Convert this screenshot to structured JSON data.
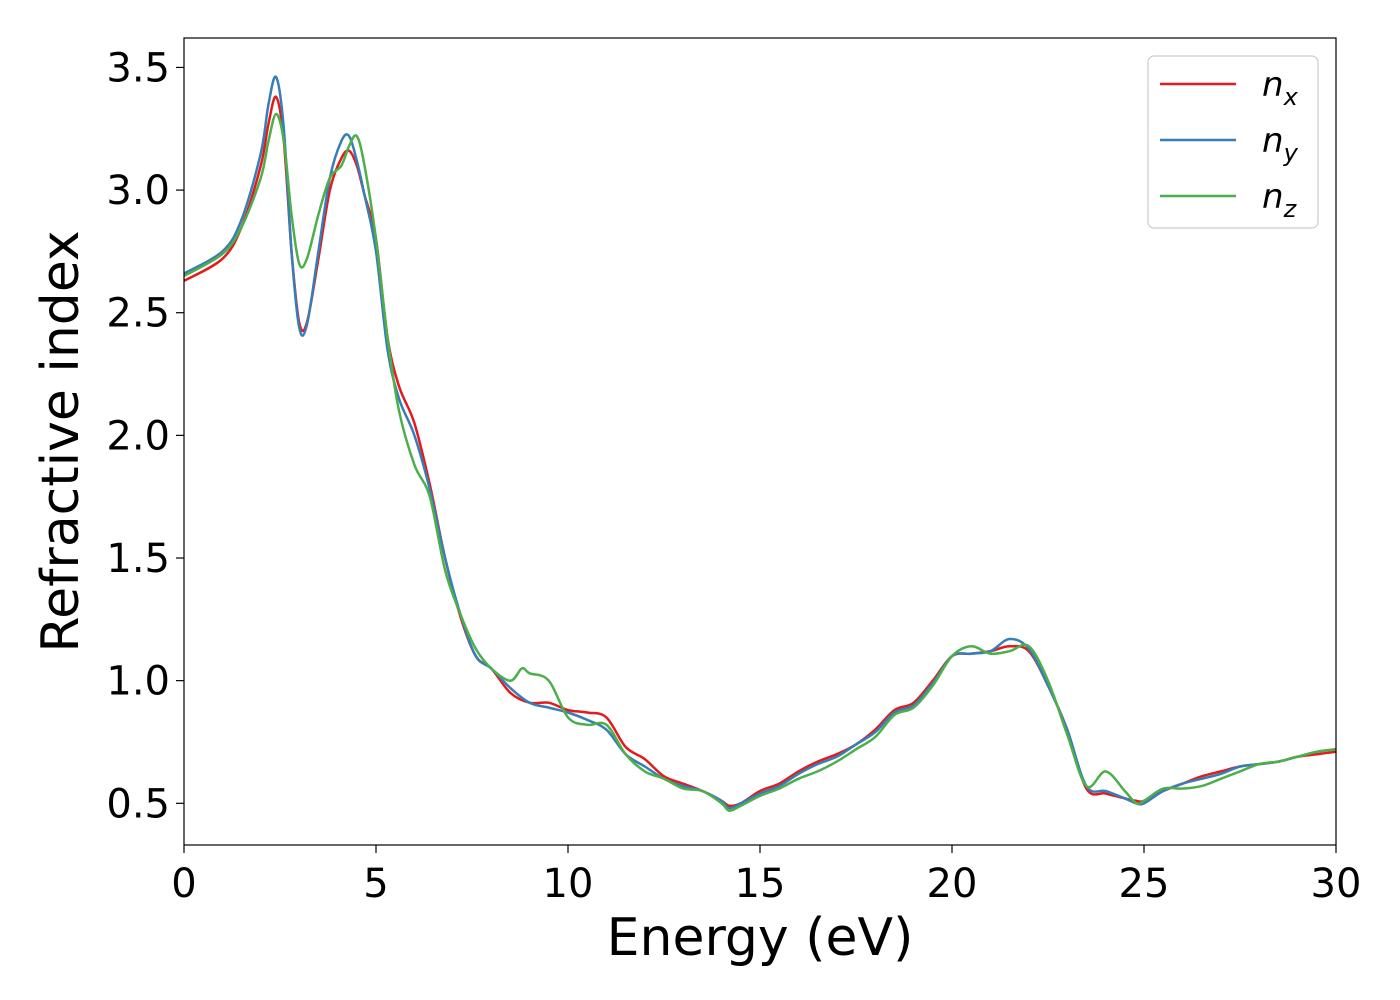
{
  "chart_data": {
    "type": "line",
    "title": "",
    "xlabel": "Energy (eV)",
    "ylabel": "Refractive index",
    "xlim": [
      0,
      30
    ],
    "ylim": [
      0.33,
      3.62
    ],
    "xticks": [
      0,
      5,
      10,
      15,
      20,
      25,
      30
    ],
    "xtick_labels": [
      "0",
      "5",
      "10",
      "15",
      "20",
      "25",
      "30"
    ],
    "yticks": [
      0.5,
      1.0,
      1.5,
      2.0,
      2.5,
      3.0,
      3.5
    ],
    "ytick_labels": [
      "0.5",
      "1.0",
      "1.5",
      "2.0",
      "2.5",
      "3.0",
      "3.5"
    ],
    "grid": false,
    "legend_position": "top-right",
    "series": [
      {
        "name": "n_x",
        "label_base": "n",
        "label_sub": "x",
        "color": "#e41a1c",
        "x": [
          0,
          1,
          1.5,
          2,
          2.2,
          2.4,
          2.6,
          2.8,
          3.0,
          3.2,
          3.5,
          3.8,
          4.1,
          4.3,
          4.5,
          4.7,
          5.0,
          5.3,
          5.6,
          6.0,
          6.4,
          6.8,
          7.2,
          7.6,
          8.0,
          8.5,
          9.0,
          9.5,
          10.0,
          10.5,
          11.0,
          11.5,
          12.0,
          12.5,
          13.0,
          13.5,
          14.0,
          14.2,
          14.5,
          15.0,
          15.5,
          16.0,
          16.5,
          17.0,
          17.5,
          18.0,
          18.5,
          19.0,
          19.5,
          20.0,
          20.5,
          21.0,
          21.5,
          22.0,
          22.5,
          23.0,
          23.5,
          24.0,
          24.5,
          24.8,
          25.0,
          25.5,
          26.0,
          26.5,
          27.0,
          27.5,
          28.0,
          28.5,
          29.0,
          29.5,
          30.0
        ],
        "y": [
          2.63,
          2.72,
          2.85,
          3.1,
          3.27,
          3.38,
          3.2,
          2.75,
          2.46,
          2.46,
          2.72,
          3.0,
          3.13,
          3.16,
          3.1,
          2.98,
          2.8,
          2.4,
          2.2,
          2.05,
          1.8,
          1.5,
          1.26,
          1.1,
          1.05,
          0.95,
          0.91,
          0.91,
          0.88,
          0.87,
          0.85,
          0.73,
          0.68,
          0.61,
          0.58,
          0.55,
          0.51,
          0.49,
          0.5,
          0.55,
          0.58,
          0.63,
          0.67,
          0.7,
          0.74,
          0.8,
          0.88,
          0.91,
          1.0,
          1.1,
          1.11,
          1.12,
          1.14,
          1.12,
          0.98,
          0.8,
          0.56,
          0.54,
          0.52,
          0.51,
          0.51,
          0.55,
          0.58,
          0.61,
          0.63,
          0.65,
          0.66,
          0.67,
          0.69,
          0.7,
          0.71
        ]
      },
      {
        "name": "n_y",
        "label_base": "n",
        "label_sub": "y",
        "color": "#377eb8",
        "x": [
          0,
          1,
          1.5,
          2,
          2.2,
          2.4,
          2.6,
          2.8,
          3.0,
          3.2,
          3.5,
          3.8,
          4.1,
          4.3,
          4.5,
          4.7,
          5.0,
          5.3,
          5.6,
          6.0,
          6.4,
          6.8,
          7.2,
          7.6,
          8.0,
          8.5,
          9.0,
          9.5,
          10.0,
          10.5,
          11.0,
          11.5,
          12.0,
          12.5,
          13.0,
          13.5,
          14.0,
          14.2,
          14.5,
          15.0,
          15.5,
          16.0,
          16.5,
          17.0,
          17.5,
          18.0,
          18.5,
          19.0,
          19.5,
          20.0,
          20.5,
          21.0,
          21.5,
          22.0,
          22.5,
          23.0,
          23.5,
          24.0,
          24.5,
          24.8,
          25.0,
          25.5,
          26.0,
          26.5,
          27.0,
          27.5,
          28.0,
          28.5,
          29.0,
          29.5,
          30.0
        ],
        "y": [
          2.66,
          2.75,
          2.88,
          3.15,
          3.35,
          3.46,
          3.25,
          2.75,
          2.44,
          2.45,
          2.75,
          3.05,
          3.2,
          3.22,
          3.12,
          2.98,
          2.75,
          2.35,
          2.15,
          2.0,
          1.78,
          1.5,
          1.27,
          1.1,
          1.05,
          0.97,
          0.91,
          0.89,
          0.87,
          0.84,
          0.8,
          0.7,
          0.65,
          0.6,
          0.57,
          0.55,
          0.51,
          0.48,
          0.5,
          0.54,
          0.57,
          0.62,
          0.66,
          0.69,
          0.74,
          0.79,
          0.87,
          0.9,
          0.99,
          1.1,
          1.11,
          1.12,
          1.17,
          1.13,
          0.98,
          0.8,
          0.57,
          0.55,
          0.52,
          0.5,
          0.5,
          0.55,
          0.58,
          0.6,
          0.62,
          0.65,
          0.66,
          0.67,
          0.69,
          0.71,
          0.72
        ]
      },
      {
        "name": "n_z",
        "label_base": "n",
        "label_sub": "z",
        "color": "#4daf4a",
        "x": [
          0,
          1,
          1.5,
          2,
          2.2,
          2.4,
          2.6,
          2.8,
          3.0,
          3.2,
          3.5,
          3.8,
          4.1,
          4.3,
          4.5,
          4.7,
          5.0,
          5.3,
          5.6,
          6.0,
          6.4,
          6.8,
          7.2,
          7.6,
          8.0,
          8.5,
          8.8,
          9.0,
          9.5,
          10.0,
          10.5,
          11.0,
          11.5,
          12.0,
          12.5,
          13.0,
          13.5,
          14.0,
          14.2,
          14.5,
          15.0,
          15.5,
          16.0,
          16.5,
          17.0,
          17.5,
          18.0,
          18.5,
          19.0,
          19.5,
          20.0,
          20.5,
          21.0,
          21.5,
          22.0,
          22.5,
          23.0,
          23.5,
          24.0,
          24.5,
          24.8,
          25.0,
          25.5,
          26.0,
          26.5,
          27.0,
          27.5,
          28.0,
          28.5,
          29.0,
          29.5,
          30.0
        ],
        "y": [
          2.65,
          2.74,
          2.85,
          3.05,
          3.2,
          3.31,
          3.2,
          2.9,
          2.7,
          2.72,
          2.9,
          3.05,
          3.1,
          3.18,
          3.22,
          3.1,
          2.8,
          2.4,
          2.1,
          1.88,
          1.75,
          1.45,
          1.27,
          1.13,
          1.05,
          1.0,
          1.05,
          1.03,
          1.0,
          0.85,
          0.82,
          0.82,
          0.7,
          0.63,
          0.6,
          0.56,
          0.55,
          0.5,
          0.47,
          0.49,
          0.53,
          0.56,
          0.6,
          0.63,
          0.67,
          0.72,
          0.77,
          0.86,
          0.89,
          0.98,
          1.1,
          1.14,
          1.11,
          1.12,
          1.14,
          1.0,
          0.78,
          0.57,
          0.63,
          0.55,
          0.5,
          0.51,
          0.56,
          0.56,
          0.57,
          0.6,
          0.63,
          0.66,
          0.67,
          0.69,
          0.71,
          0.72
        ]
      }
    ]
  }
}
